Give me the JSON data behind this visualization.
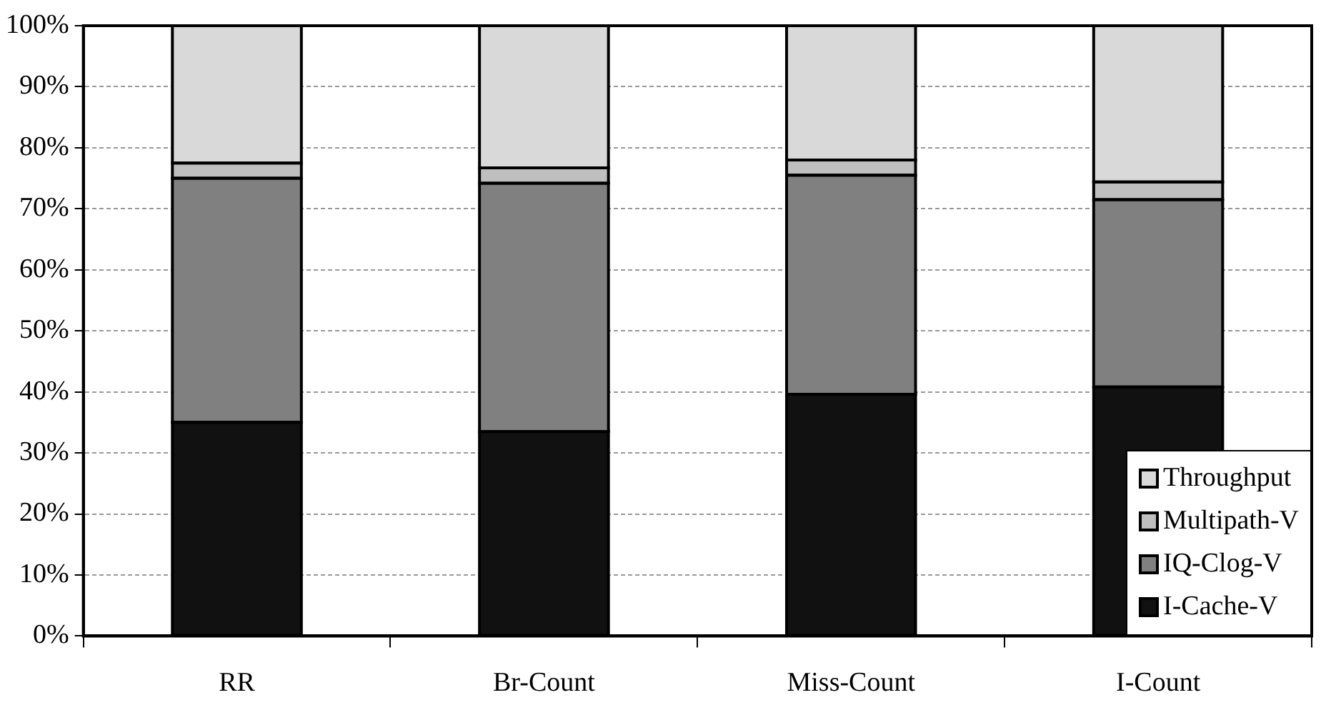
{
  "chart_data": {
    "type": "bar",
    "stacked": true,
    "categories": [
      "RR",
      "Br-Count",
      "Miss-Count",
      "I-Count"
    ],
    "series": [
      {
        "name": "I-Cache-V",
        "color": "#111111",
        "values": [
          35,
          33.5,
          39.6,
          40.8
        ]
      },
      {
        "name": "IQ-Clog-V",
        "color": "#808080",
        "values": [
          40,
          40.7,
          35.9,
          30.7
        ]
      },
      {
        "name": "Multipath-V",
        "color": "#bfbfbf",
        "values": [
          2.5,
          2.5,
          2.5,
          2.9
        ]
      },
      {
        "name": "Throughput",
        "color": "#d9d9d9",
        "values": [
          22.5,
          23.3,
          22,
          25.6
        ]
      }
    ],
    "ylim": [
      0,
      100
    ],
    "yticks": [
      {
        "value": 0,
        "label": "0%"
      },
      {
        "value": 10,
        "label": "10%"
      },
      {
        "value": 20,
        "label": "20%"
      },
      {
        "value": 30,
        "label": "30%"
      },
      {
        "value": 40,
        "label": "40%"
      },
      {
        "value": 50,
        "label": "50%"
      },
      {
        "value": 60,
        "label": "60%"
      },
      {
        "value": 70,
        "label": "70%"
      },
      {
        "value": 80,
        "label": "80%"
      },
      {
        "value": 90,
        "label": "90%"
      },
      {
        "value": 100,
        "label": "100%"
      }
    ],
    "grid": "y",
    "legend": "bottom right"
  }
}
